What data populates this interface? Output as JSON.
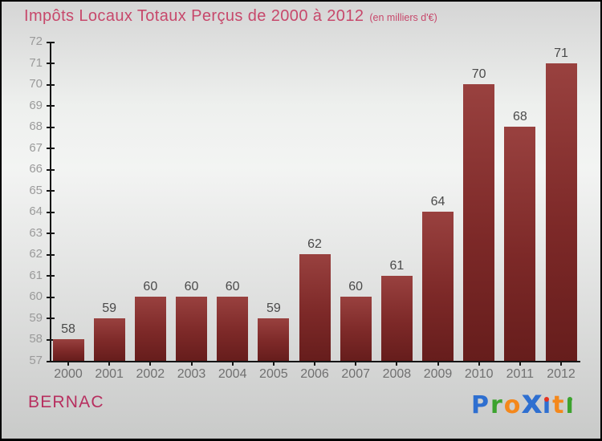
{
  "title": {
    "text": "Impôts Locaux Totaux Perçus de 2000 à 2012",
    "suffix": "(en milliers d'€)",
    "color": "#c7486b"
  },
  "footer": {
    "place_name": "BERNAC",
    "color": "#b72f5f"
  },
  "logo": {
    "name": "Proxiti",
    "letters": [
      {
        "ch": "P",
        "color": "#2e6fd0"
      },
      {
        "ch": "r",
        "color": "#3ca32e"
      },
      {
        "ch": "o",
        "color": "#f4881c"
      },
      {
        "ch": "x",
        "color": "#2e6fd0"
      },
      {
        "ch": "i",
        "color": "#2e6fd0",
        "dot_color": "#e5311f"
      },
      {
        "ch": "t",
        "color": "#f4881c"
      },
      {
        "ch": "i",
        "color": "#3ca32e",
        "dot_color": "#3ca32e"
      }
    ]
  },
  "chart_data": {
    "type": "bar",
    "title": "Impôts Locaux Totaux Perçus de 2000 à 2012 (en milliers d'€)",
    "categories": [
      "2000",
      "2001",
      "2002",
      "2003",
      "2004",
      "2005",
      "2006",
      "2007",
      "2008",
      "2009",
      "2010",
      "2011",
      "2012"
    ],
    "values": [
      58,
      59,
      60,
      60,
      60,
      59,
      62,
      60,
      61,
      64,
      70,
      68,
      71
    ],
    "xlabel": "",
    "ylabel": "",
    "ylim": [
      57,
      72
    ],
    "y_tick_step": 1,
    "grid": false,
    "legend": false,
    "bar_color_top": "#99413f",
    "bar_color_mid": "#7d2928",
    "bar_color_bottom": "#661d1c",
    "axis_color": "#151515",
    "value_label_color": "#4a4a4a",
    "x_tick_label_color": "#707070",
    "y_tick_label_color": "#9a9a9a"
  }
}
